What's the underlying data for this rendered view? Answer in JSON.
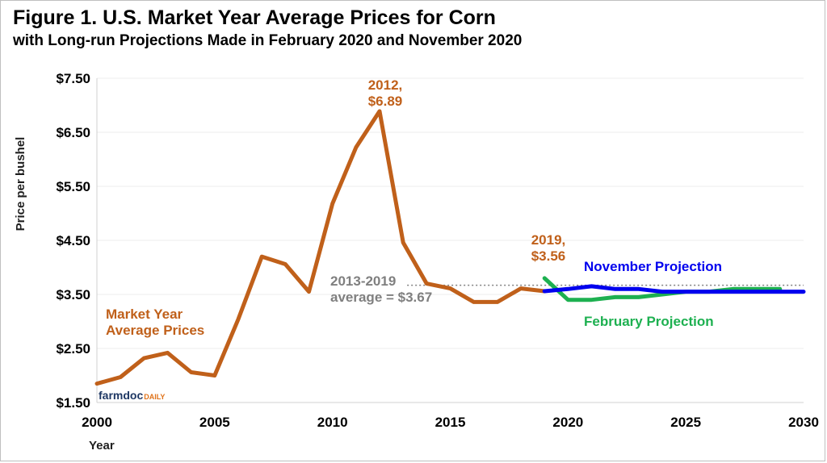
{
  "chart_data": {
    "type": "line",
    "title": "Figure 1. U.S. Market Year Average Prices for Corn",
    "subtitle": "with Long-run Projections Made in February 2020 and November 2020",
    "xlabel": "Year",
    "ylabel": "Price per bushel",
    "xlim": [
      2000,
      2030
    ],
    "ylim": [
      1.5,
      7.5
    ],
    "x_ticks": [
      "2000",
      "2005",
      "2010",
      "2015",
      "2020",
      "2025",
      "2030"
    ],
    "y_ticks": [
      "$1.50",
      "$2.50",
      "$3.50",
      "$4.50",
      "$5.50",
      "$6.50",
      "$7.50"
    ],
    "grid": true,
    "series": [
      {
        "name": "Market Year Average Prices",
        "color": "#c0601a",
        "x": [
          2000,
          2001,
          2002,
          2003,
          2004,
          2005,
          2006,
          2007,
          2008,
          2009,
          2010,
          2011,
          2012,
          2013,
          2014,
          2015,
          2016,
          2017,
          2018,
          2019
        ],
        "y": [
          1.85,
          1.97,
          2.32,
          2.42,
          2.06,
          2.0,
          3.04,
          4.2,
          4.06,
          3.55,
          5.18,
          6.22,
          6.89,
          4.46,
          3.7,
          3.61,
          3.36,
          3.36,
          3.61,
          3.56
        ]
      },
      {
        "name": "November Projection",
        "color": "#0000ee",
        "x": [
          2019,
          2020,
          2021,
          2022,
          2023,
          2024,
          2025,
          2026,
          2027,
          2028,
          2029,
          2030
        ],
        "y": [
          3.56,
          3.6,
          3.65,
          3.6,
          3.6,
          3.55,
          3.55,
          3.55,
          3.55,
          3.55,
          3.55,
          3.55
        ]
      },
      {
        "name": "February Projection",
        "color": "#1db050",
        "x": [
          2019,
          2020,
          2021,
          2022,
          2023,
          2024,
          2025,
          2026,
          2027,
          2028,
          2029
        ],
        "y": [
          3.8,
          3.4,
          3.4,
          3.45,
          3.45,
          3.5,
          3.55,
          3.55,
          3.6,
          3.6,
          3.6
        ]
      }
    ],
    "reference_line": {
      "x_start": 2019,
      "x_end": 2030,
      "y": 3.67,
      "style": "dotted",
      "color": "#7f7f7f"
    },
    "annotations": [
      {
        "id": "peak",
        "lines": [
          "2012,",
          "$6.89"
        ],
        "color": "#c0601a"
      },
      {
        "id": "last",
        "lines": [
          "2019,",
          "$3.56"
        ],
        "color": "#c0601a"
      },
      {
        "id": "avg",
        "lines": [
          "2013-2019",
          "average = $3.67"
        ],
        "color": "#7f7f7f"
      },
      {
        "id": "mya",
        "lines": [
          "Market Year",
          "Average Prices"
        ],
        "color": "#c0601a"
      },
      {
        "id": "nov",
        "lines": [
          "November Projection"
        ],
        "color": "#0000ee"
      },
      {
        "id": "feb",
        "lines": [
          "February Projection"
        ],
        "color": "#1db050"
      }
    ],
    "logo": {
      "part1": "farmdoc",
      "part2": "DAILY"
    }
  }
}
